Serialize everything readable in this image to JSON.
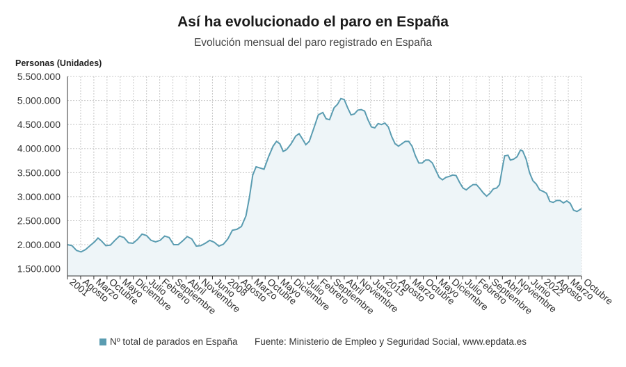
{
  "header": {
    "title": "Así ha evolucionado el paro en España",
    "subtitle": "Evolución mensual del paro registrado en España"
  },
  "footer": {
    "legend_label": "Nº total de parados en España",
    "source": "Fuente: Ministerio de Empleo y Seguridad Social, www.epdata.es"
  },
  "colors": {
    "line": "#5a9cb1",
    "fill": "#eef5f8",
    "grid": "#c8c8c8",
    "axis": "#333333"
  },
  "chart_data": {
    "type": "area",
    "title": "Así ha evolucionado el paro en España",
    "subtitle": "Evolución mensual del paro registrado en España",
    "ylabel": "Personas (Unidades)",
    "xlabel": "",
    "ylim": [
      1350000,
      5500000
    ],
    "yticks": [
      {
        "value": 1500000,
        "label": "1.500.000"
      },
      {
        "value": 2000000,
        "label": "2.000.000"
      },
      {
        "value": 2500000,
        "label": "2.500.000"
      },
      {
        "value": 3000000,
        "label": "3.000.000"
      },
      {
        "value": 3500000,
        "label": "3.500.000"
      },
      {
        "value": 4000000,
        "label": "4.000.000"
      },
      {
        "value": 4500000,
        "label": "4.500.000"
      },
      {
        "value": 5000000,
        "label": "5.000.000"
      },
      {
        "value": 5500000,
        "label": "5.500.000"
      }
    ],
    "xlim": [
      2001.0,
      2023.75
    ],
    "xticks": [
      {
        "t": 2001.0,
        "label": "2001"
      },
      {
        "t": 2001.583,
        "label": "Agosto"
      },
      {
        "t": 2002.167,
        "label": "Marzo"
      },
      {
        "t": 2002.75,
        "label": "Octubre"
      },
      {
        "t": 2003.333,
        "label": "Mayo"
      },
      {
        "t": 2003.917,
        "label": "Diciembre"
      },
      {
        "t": 2004.5,
        "label": "Julio"
      },
      {
        "t": 2005.083,
        "label": "Febrero"
      },
      {
        "t": 2005.667,
        "label": "Septiembre"
      },
      {
        "t": 2006.25,
        "label": "Abril"
      },
      {
        "t": 2006.833,
        "label": "Noviembre"
      },
      {
        "t": 2007.417,
        "label": "Junio"
      },
      {
        "t": 2008.0,
        "label": "2008"
      },
      {
        "t": 2008.583,
        "label": "Agosto"
      },
      {
        "t": 2009.167,
        "label": "Marzo"
      },
      {
        "t": 2009.75,
        "label": "Octubre"
      },
      {
        "t": 2010.333,
        "label": "Mayo"
      },
      {
        "t": 2010.917,
        "label": "Diciembre"
      },
      {
        "t": 2011.5,
        "label": "Julio"
      },
      {
        "t": 2012.083,
        "label": "Febrero"
      },
      {
        "t": 2012.667,
        "label": "Septiembre"
      },
      {
        "t": 2013.25,
        "label": "Abril"
      },
      {
        "t": 2013.833,
        "label": "Noviembre"
      },
      {
        "t": 2014.417,
        "label": "Junio"
      },
      {
        "t": 2015.0,
        "label": "2015"
      },
      {
        "t": 2015.583,
        "label": "Agosto"
      },
      {
        "t": 2016.167,
        "label": "Marzo"
      },
      {
        "t": 2016.75,
        "label": "Octubre"
      },
      {
        "t": 2017.333,
        "label": "Mayo"
      },
      {
        "t": 2017.917,
        "label": "Diciembre"
      },
      {
        "t": 2018.5,
        "label": "Julio"
      },
      {
        "t": 2019.083,
        "label": "Febrero"
      },
      {
        "t": 2019.667,
        "label": "Septiembre"
      },
      {
        "t": 2020.25,
        "label": "Abril"
      },
      {
        "t": 2020.833,
        "label": "Noviembre"
      },
      {
        "t": 2021.417,
        "label": "Junio"
      },
      {
        "t": 2022.0,
        "label": "2022"
      },
      {
        "t": 2022.583,
        "label": "Agosto"
      },
      {
        "t": 2023.167,
        "label": "Marzo"
      },
      {
        "t": 2023.75,
        "label": "Octubre"
      }
    ],
    "series": [
      {
        "name": "Nº total de parados en España",
        "points": [
          [
            2001.0,
            2000000
          ],
          [
            2001.2,
            1980000
          ],
          [
            2001.4,
            1880000
          ],
          [
            2001.6,
            1850000
          ],
          [
            2001.8,
            1900000
          ],
          [
            2002.0,
            1980000
          ],
          [
            2002.2,
            2060000
          ],
          [
            2002.35,
            2140000
          ],
          [
            2002.5,
            2080000
          ],
          [
            2002.7,
            1980000
          ],
          [
            2002.9,
            1990000
          ],
          [
            2003.1,
            2090000
          ],
          [
            2003.3,
            2180000
          ],
          [
            2003.5,
            2150000
          ],
          [
            2003.7,
            2040000
          ],
          [
            2003.9,
            2030000
          ],
          [
            2004.1,
            2110000
          ],
          [
            2004.3,
            2220000
          ],
          [
            2004.5,
            2190000
          ],
          [
            2004.7,
            2090000
          ],
          [
            2004.9,
            2060000
          ],
          [
            2005.1,
            2090000
          ],
          [
            2005.3,
            2180000
          ],
          [
            2005.5,
            2150000
          ],
          [
            2005.7,
            2000000
          ],
          [
            2005.9,
            2000000
          ],
          [
            2006.1,
            2080000
          ],
          [
            2006.3,
            2170000
          ],
          [
            2006.5,
            2120000
          ],
          [
            2006.7,
            1970000
          ],
          [
            2006.9,
            1980000
          ],
          [
            2007.1,
            2030000
          ],
          [
            2007.3,
            2090000
          ],
          [
            2007.5,
            2050000
          ],
          [
            2007.7,
            1970000
          ],
          [
            2007.9,
            2010000
          ],
          [
            2008.1,
            2120000
          ],
          [
            2008.3,
            2300000
          ],
          [
            2008.5,
            2320000
          ],
          [
            2008.7,
            2380000
          ],
          [
            2008.9,
            2600000
          ],
          [
            2009.05,
            2980000
          ],
          [
            2009.2,
            3450000
          ],
          [
            2009.35,
            3620000
          ],
          [
            2009.5,
            3600000
          ],
          [
            2009.7,
            3570000
          ],
          [
            2009.9,
            3830000
          ],
          [
            2010.1,
            4050000
          ],
          [
            2010.25,
            4150000
          ],
          [
            2010.4,
            4100000
          ],
          [
            2010.55,
            3940000
          ],
          [
            2010.7,
            3980000
          ],
          [
            2010.9,
            4100000
          ],
          [
            2011.1,
            4260000
          ],
          [
            2011.25,
            4310000
          ],
          [
            2011.4,
            4200000
          ],
          [
            2011.55,
            4080000
          ],
          [
            2011.7,
            4150000
          ],
          [
            2011.9,
            4420000
          ],
          [
            2012.1,
            4700000
          ],
          [
            2012.3,
            4750000
          ],
          [
            2012.45,
            4620000
          ],
          [
            2012.6,
            4600000
          ],
          [
            2012.8,
            4850000
          ],
          [
            2012.95,
            4920000
          ],
          [
            2013.1,
            5040000
          ],
          [
            2013.25,
            5020000
          ],
          [
            2013.4,
            4850000
          ],
          [
            2013.55,
            4700000
          ],
          [
            2013.7,
            4720000
          ],
          [
            2013.85,
            4800000
          ],
          [
            2014.0,
            4810000
          ],
          [
            2014.15,
            4780000
          ],
          [
            2014.3,
            4600000
          ],
          [
            2014.45,
            4450000
          ],
          [
            2014.6,
            4430000
          ],
          [
            2014.75,
            4520000
          ],
          [
            2014.9,
            4500000
          ],
          [
            2015.05,
            4530000
          ],
          [
            2015.2,
            4450000
          ],
          [
            2015.35,
            4250000
          ],
          [
            2015.5,
            4100000
          ],
          [
            2015.65,
            4050000
          ],
          [
            2015.8,
            4100000
          ],
          [
            2015.95,
            4150000
          ],
          [
            2016.1,
            4150000
          ],
          [
            2016.25,
            4050000
          ],
          [
            2016.4,
            3850000
          ],
          [
            2016.55,
            3700000
          ],
          [
            2016.7,
            3700000
          ],
          [
            2016.85,
            3760000
          ],
          [
            2017.0,
            3760000
          ],
          [
            2017.15,
            3700000
          ],
          [
            2017.3,
            3550000
          ],
          [
            2017.45,
            3400000
          ],
          [
            2017.6,
            3350000
          ],
          [
            2017.75,
            3400000
          ],
          [
            2017.9,
            3420000
          ],
          [
            2018.05,
            3450000
          ],
          [
            2018.2,
            3440000
          ],
          [
            2018.35,
            3300000
          ],
          [
            2018.5,
            3180000
          ],
          [
            2018.65,
            3140000
          ],
          [
            2018.8,
            3200000
          ],
          [
            2018.95,
            3250000
          ],
          [
            2019.1,
            3250000
          ],
          [
            2019.25,
            3170000
          ],
          [
            2019.4,
            3080000
          ],
          [
            2019.55,
            3010000
          ],
          [
            2019.7,
            3070000
          ],
          [
            2019.85,
            3160000
          ],
          [
            2020.0,
            3180000
          ],
          [
            2020.12,
            3250000
          ],
          [
            2020.25,
            3600000
          ],
          [
            2020.35,
            3850000
          ],
          [
            2020.5,
            3860000
          ],
          [
            2020.6,
            3760000
          ],
          [
            2020.75,
            3780000
          ],
          [
            2020.9,
            3830000
          ],
          [
            2021.05,
            3970000
          ],
          [
            2021.15,
            3950000
          ],
          [
            2021.3,
            3780000
          ],
          [
            2021.45,
            3500000
          ],
          [
            2021.6,
            3330000
          ],
          [
            2021.75,
            3260000
          ],
          [
            2021.9,
            3140000
          ],
          [
            2022.05,
            3110000
          ],
          [
            2022.2,
            3070000
          ],
          [
            2022.35,
            2900000
          ],
          [
            2022.5,
            2880000
          ],
          [
            2022.65,
            2920000
          ],
          [
            2022.8,
            2920000
          ],
          [
            2022.95,
            2870000
          ],
          [
            2023.1,
            2910000
          ],
          [
            2023.25,
            2860000
          ],
          [
            2023.4,
            2720000
          ],
          [
            2023.55,
            2690000
          ],
          [
            2023.75,
            2750000
          ]
        ]
      }
    ]
  }
}
